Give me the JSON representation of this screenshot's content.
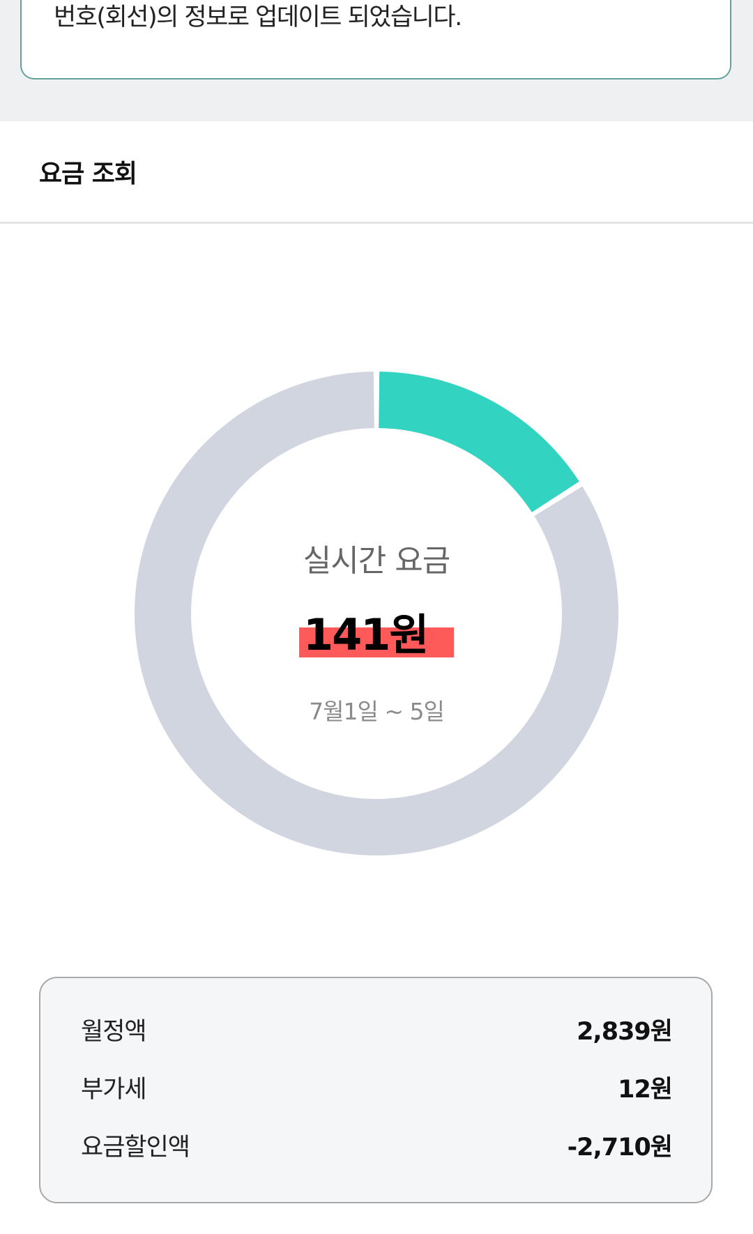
{
  "notice": {
    "text": "번호(회선)의 정보로 업데이트 되었습니다."
  },
  "section": {
    "title": "요금 조회"
  },
  "usage": {
    "label": "실시간 요금",
    "amount": "141원",
    "period": "7월1일 ~ 5일",
    "used_fraction": 0.16,
    "colors": {
      "used": "#33d3c1",
      "remaining": "#d1d5df",
      "highlight": "#ff5a5a"
    }
  },
  "summary": {
    "rows": [
      {
        "label": "월정액",
        "value": "2,839원"
      },
      {
        "label": "부가세",
        "value": "12원"
      },
      {
        "label": "요금할인액",
        "value": "-2,710원"
      }
    ]
  }
}
